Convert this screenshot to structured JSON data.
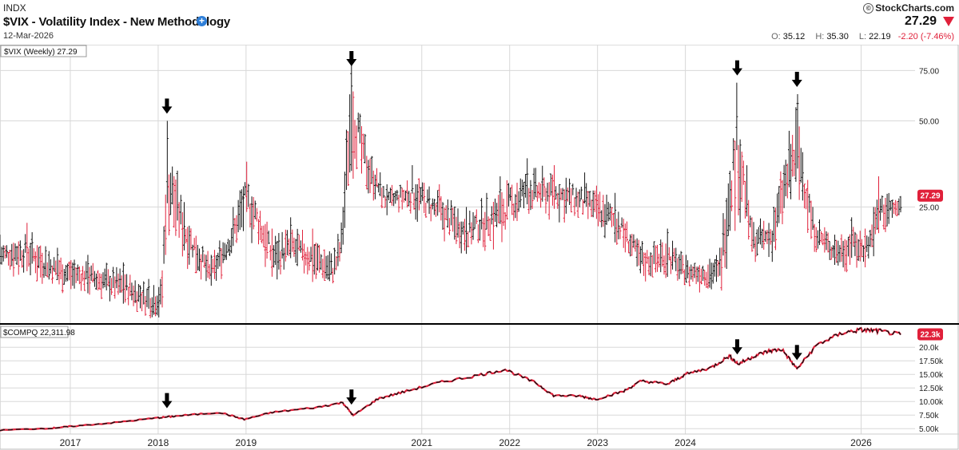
{
  "header": {
    "symbol": "INDX",
    "title": "$VIX - Volatility Index - New Methodology",
    "date": "12-Mar-2026",
    "brand": "StockCharts.com",
    "brand_prefix": "©",
    "last": "27.29",
    "ohlc": {
      "open_label": "O:",
      "open": "35.12",
      "high_label": "H:",
      "high": "35.30",
      "low_label": "L:",
      "low": "22.19",
      "change": "-2.20 (-7.46%)"
    }
  },
  "colors": {
    "up_bar": "#111111",
    "down_bar": "#e0203a",
    "badge": "#e0203a",
    "gridline": "#d8d8d8",
    "divider": "#000000"
  },
  "chart_data": [
    {
      "type": "ohlc",
      "title": "$VIX (Weekly) 27.29",
      "scale": "log",
      "ylim": [
        10,
        90
      ],
      "y_ticks": [
        25,
        50,
        75
      ],
      "y_tick_labels": [
        "25.00",
        "50.00",
        "75.00"
      ],
      "last_value_badge": "27.29",
      "x_ticks": [
        "2017",
        "2018",
        "2019",
        "2021",
        "2022",
        "2023",
        "2024",
        "2026"
      ],
      "x_tick_dates": [
        2017.0,
        2018.0,
        2019.0,
        2021.0,
        2022.0,
        2023.0,
        2024.0,
        2026.0
      ],
      "grid": true,
      "x_range": [
        2016.2,
        2026.45
      ],
      "anchors_high": [
        [
          2016.2,
          20
        ],
        [
          2016.5,
          22
        ],
        [
          2016.85,
          18
        ],
        [
          2017.2,
          17
        ],
        [
          2017.6,
          16
        ],
        [
          2017.9,
          14
        ],
        [
          2018.05,
          15
        ],
        [
          2018.1,
          50
        ],
        [
          2018.3,
          26
        ],
        [
          2018.6,
          17
        ],
        [
          2018.85,
          25
        ],
        [
          2019.0,
          36
        ],
        [
          2019.3,
          21
        ],
        [
          2019.5,
          23
        ],
        [
          2019.75,
          21
        ],
        [
          2020.0,
          18
        ],
        [
          2020.1,
          25
        ],
        [
          2020.2,
          85
        ],
        [
          2020.35,
          45
        ],
        [
          2020.6,
          30
        ],
        [
          2020.9,
          35
        ],
        [
          2021.2,
          30
        ],
        [
          2021.5,
          25
        ],
        [
          2021.9,
          32
        ],
        [
          2022.2,
          37
        ],
        [
          2022.5,
          35
        ],
        [
          2022.85,
          33
        ],
        [
          2023.2,
          28
        ],
        [
          2023.5,
          19
        ],
        [
          2023.8,
          21
        ],
        [
          2024.0,
          17
        ],
        [
          2024.4,
          18
        ],
        [
          2024.59,
          68
        ],
        [
          2024.75,
          23
        ],
        [
          2025.0,
          25
        ],
        [
          2025.27,
          62
        ],
        [
          2025.45,
          25
        ],
        [
          2025.7,
          20
        ],
        [
          2025.9,
          23
        ],
        [
          2026.05,
          21
        ],
        [
          2026.15,
          25
        ],
        [
          2026.2,
          32
        ],
        [
          2026.45,
          27.29
        ]
      ],
      "anchors_low": [
        [
          2016.2,
          14
        ],
        [
          2016.5,
          13
        ],
        [
          2016.85,
          12
        ],
        [
          2017.2,
          11.5
        ],
        [
          2017.6,
          10.5
        ],
        [
          2017.9,
          9.5
        ],
        [
          2018.05,
          9.2
        ],
        [
          2018.1,
          13
        ],
        [
          2018.3,
          15
        ],
        [
          2018.6,
          11.5
        ],
        [
          2018.85,
          15
        ],
        [
          2019.0,
          18
        ],
        [
          2019.3,
          12.5
        ],
        [
          2019.5,
          13
        ],
        [
          2019.75,
          12.5
        ],
        [
          2020.0,
          12
        ],
        [
          2020.1,
          13
        ],
        [
          2020.2,
          25
        ],
        [
          2020.35,
          26
        ],
        [
          2020.6,
          22
        ],
        [
          2020.9,
          21
        ],
        [
          2021.2,
          18
        ],
        [
          2021.5,
          16
        ],
        [
          2021.9,
          16
        ],
        [
          2022.2,
          20
        ],
        [
          2022.5,
          21
        ],
        [
          2022.85,
          19
        ],
        [
          2023.2,
          17
        ],
        [
          2023.5,
          13
        ],
        [
          2023.8,
          13
        ],
        [
          2024.0,
          12.5
        ],
        [
          2024.4,
          11.5
        ],
        [
          2024.59,
          15
        ],
        [
          2024.75,
          15
        ],
        [
          2025.0,
          14.5
        ],
        [
          2025.27,
          18
        ],
        [
          2025.45,
          17
        ],
        [
          2025.7,
          14.5
        ],
        [
          2025.9,
          14
        ],
        [
          2026.05,
          14.5
        ],
        [
          2026.15,
          16
        ],
        [
          2026.2,
          17
        ],
        [
          2026.45,
          22.19
        ]
      ],
      "annotation_arrows_x": [
        2018.1,
        2020.2,
        2024.59,
        2025.27
      ]
    },
    {
      "type": "line",
      "title": "$COMPQ 22,311.98",
      "last_value_badge": "22.3k",
      "y_ticks": [
        5000,
        7500,
        10000,
        12500,
        15000,
        17500,
        20000
      ],
      "y_tick_labels": [
        "5.00k",
        "7.50k",
        "10.00k",
        "12.50k",
        "15.00k",
        "17.50k",
        "20.0k"
      ],
      "ylim": [
        4000,
        24000
      ],
      "x": [
        2016.2,
        2016.8,
        2017.0,
        2017.5,
        2018.0,
        2018.2,
        2018.7,
        2018.98,
        2019.3,
        2019.8,
        2020.1,
        2020.22,
        2020.5,
        2020.8,
        2021.2,
        2021.6,
        2021.95,
        2022.3,
        2022.5,
        2022.8,
        2022.98,
        2023.3,
        2023.5,
        2023.8,
        2024.0,
        2024.3,
        2024.5,
        2024.6,
        2024.8,
        2024.95,
        2025.1,
        2025.27,
        2025.5,
        2025.8,
        2026.0,
        2026.2,
        2026.45
      ],
      "y": [
        4700,
        5100,
        5400,
        6100,
        7000,
        7300,
        8000,
        6700,
        8000,
        8900,
        9800,
        7400,
        10500,
        11800,
        13500,
        14700,
        15900,
        13400,
        11100,
        11000,
        10400,
        11900,
        13800,
        13200,
        15000,
        16300,
        18400,
        16900,
        18500,
        19300,
        19600,
        16000,
        20500,
        22700,
        23200,
        23000,
        22311.98
      ]
    }
  ]
}
